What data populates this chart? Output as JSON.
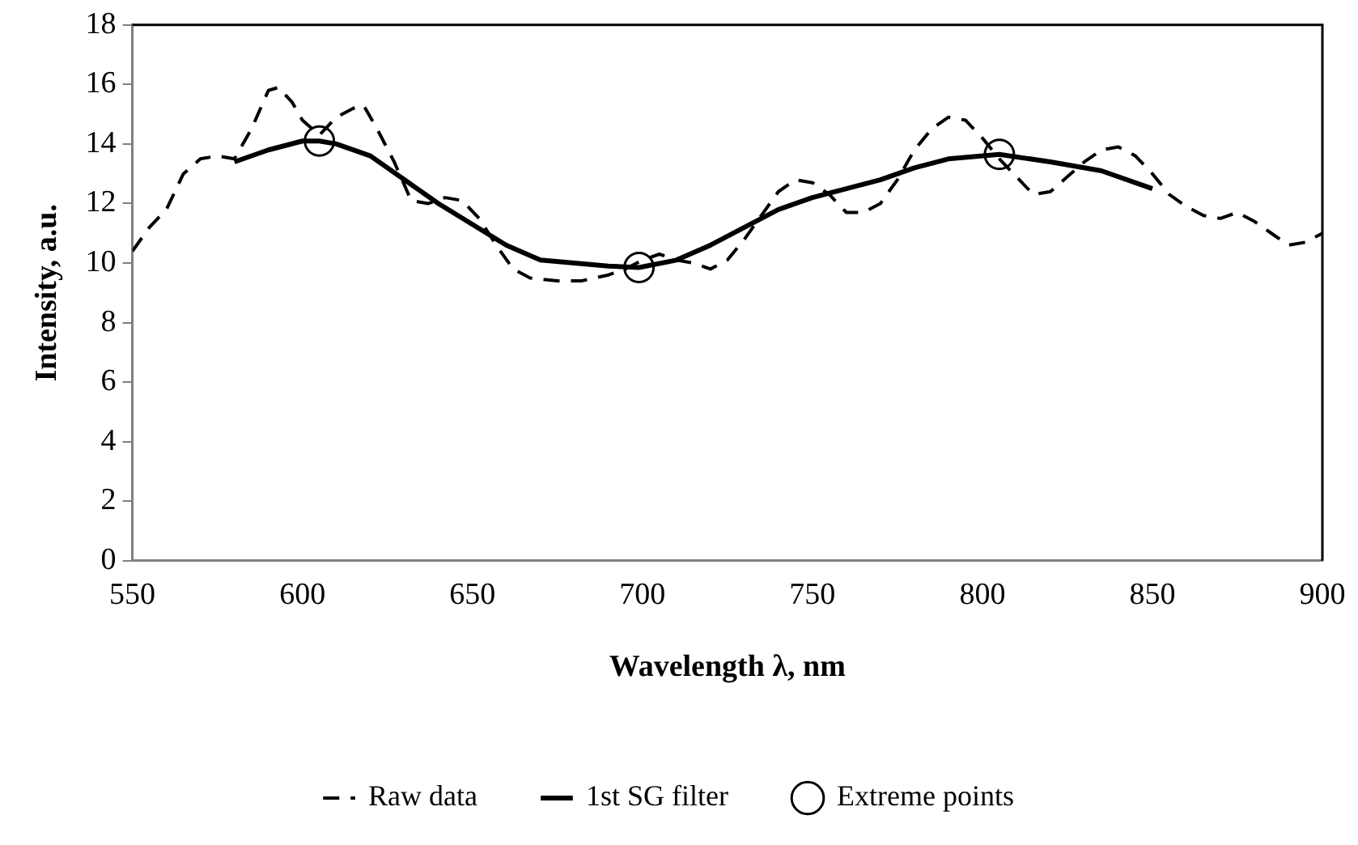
{
  "chart_data": {
    "type": "line",
    "xlabel": "Wavelength λ, nm",
    "ylabel": "Intensity, a.u.",
    "xlim": [
      550,
      900
    ],
    "xticks": [
      550,
      600,
      650,
      700,
      750,
      800,
      850,
      900
    ],
    "ylim": [
      0,
      18
    ],
    "yticks": [
      0,
      2,
      4,
      6,
      8,
      10,
      12,
      14,
      16,
      18
    ],
    "grid": false,
    "legend": "bottom",
    "series": [
      {
        "name": "Raw data",
        "type": "line",
        "color": "#000000",
        "line_style": "dashed",
        "marker": "none",
        "x": [
          550,
          555,
          560,
          565,
          570,
          575,
          580,
          585,
          590,
          593,
          597,
          600,
          605,
          610,
          615,
          618,
          622,
          627,
          632,
          637,
          642,
          647,
          652,
          657,
          662,
          667,
          675,
          682,
          690,
          695,
          700,
          705,
          710,
          715,
          720,
          725,
          730,
          735,
          740,
          745,
          750,
          755,
          760,
          765,
          770,
          775,
          780,
          785,
          790,
          795,
          800,
          805,
          810,
          815,
          820,
          825,
          830,
          835,
          840,
          845,
          850,
          855,
          860,
          865,
          870,
          875,
          880,
          885,
          890,
          895,
          900
        ],
        "values": [
          10.4,
          11.2,
          11.8,
          13.0,
          13.5,
          13.6,
          13.5,
          14.5,
          15.8,
          15.9,
          15.4,
          14.8,
          14.3,
          14.9,
          15.2,
          15.3,
          14.5,
          13.4,
          12.1,
          12.0,
          12.2,
          12.1,
          11.5,
          10.6,
          9.8,
          9.5,
          9.4,
          9.4,
          9.6,
          9.8,
          10.1,
          10.3,
          10.1,
          10.0,
          9.8,
          10.1,
          10.8,
          11.6,
          12.4,
          12.8,
          12.7,
          12.3,
          11.7,
          11.7,
          12.0,
          12.8,
          13.8,
          14.5,
          14.9,
          14.8,
          14.2,
          13.5,
          12.9,
          12.3,
          12.4,
          12.9,
          13.4,
          13.8,
          13.9,
          13.6,
          13.0,
          12.3,
          11.9,
          11.6,
          11.5,
          11.7,
          11.4,
          11.0,
          10.6,
          10.7,
          11.0
        ]
      },
      {
        "name": "1st SG filter",
        "type": "line",
        "color": "#000000",
        "line_style": "solid",
        "marker": "none",
        "x": [
          580,
          590,
          600,
          605,
          610,
          620,
          630,
          640,
          650,
          660,
          670,
          680,
          690,
          699,
          710,
          720,
          730,
          740,
          750,
          760,
          770,
          780,
          790,
          805,
          820,
          835,
          850
        ],
        "values": [
          13.4,
          13.8,
          14.1,
          14.1,
          14.0,
          13.6,
          12.8,
          12.0,
          11.3,
          10.6,
          10.1,
          10.0,
          9.9,
          9.85,
          10.1,
          10.6,
          11.2,
          11.8,
          12.2,
          12.5,
          12.8,
          13.2,
          13.5,
          13.65,
          13.4,
          13.1,
          12.5
        ]
      },
      {
        "name": "Extreme points",
        "type": "scatter",
        "color": "#000000",
        "marker": "circle",
        "x": [
          605,
          699,
          805
        ],
        "values": [
          14.1,
          9.85,
          13.65
        ]
      }
    ]
  }
}
